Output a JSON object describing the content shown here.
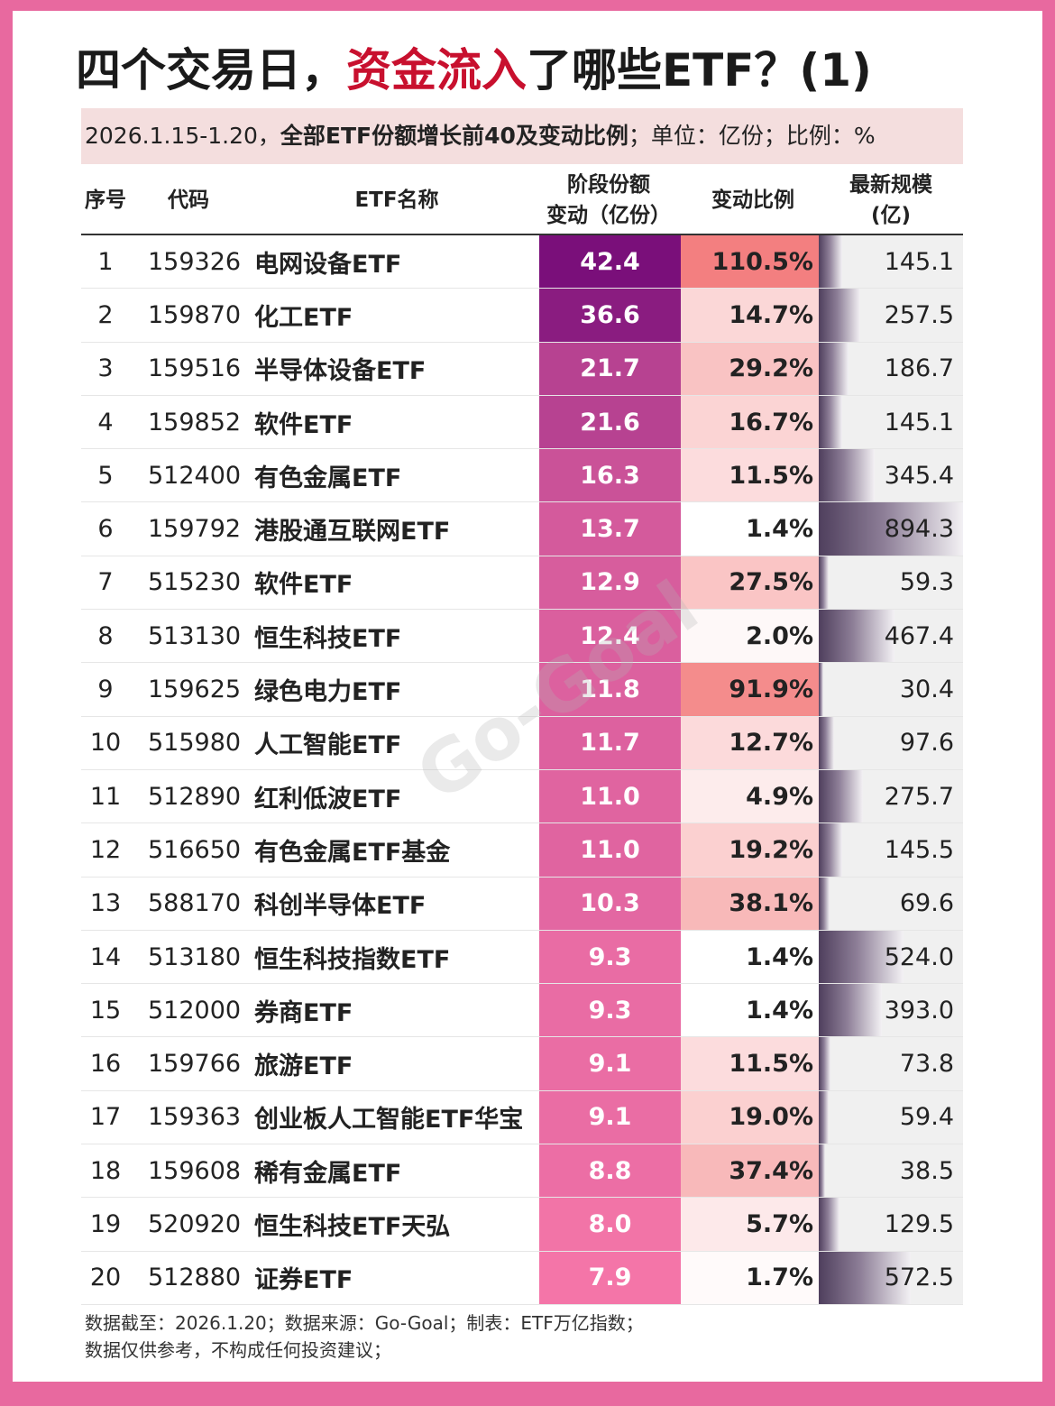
{
  "title": {
    "part1": "四个交易日，",
    "highlight": "资金流入",
    "part2": "了哪些ETF？(1)"
  },
  "subtitle": {
    "part1": "2026.1.15-1.20，",
    "bold": "全部ETF份额增长前40及变动比例",
    "part2": "；单位：亿份；比例：%"
  },
  "headers": {
    "idx": "序号",
    "code": "代码",
    "name": "ETF名称",
    "chg_line1": "阶段份额",
    "chg_line2": "变动（亿份）",
    "pct": "变动比例",
    "size_line1": "最新规模",
    "size_line2": "(亿)"
  },
  "chart_data": {
    "type": "table",
    "columns": [
      "序号",
      "代码",
      "ETF名称",
      "阶段份额变动（亿份）",
      "变动比例",
      "最新规模(亿)"
    ],
    "rows": [
      {
        "idx": "1",
        "code": "159326",
        "name": "电网设备ETF",
        "change": 42.4,
        "change_text": "42.4",
        "pct": 110.5,
        "pct_text": "110.5%",
        "size": 145.1,
        "size_text": "145.1"
      },
      {
        "idx": "2",
        "code": "159870",
        "name": "化工ETF",
        "change": 36.6,
        "change_text": "36.6",
        "pct": 14.7,
        "pct_text": "14.7%",
        "size": 257.5,
        "size_text": "257.5"
      },
      {
        "idx": "3",
        "code": "159516",
        "name": "半导体设备ETF",
        "change": 21.7,
        "change_text": "21.7",
        "pct": 29.2,
        "pct_text": "29.2%",
        "size": 186.7,
        "size_text": "186.7"
      },
      {
        "idx": "4",
        "code": "159852",
        "name": "软件ETF",
        "change": 21.6,
        "change_text": "21.6",
        "pct": 16.7,
        "pct_text": "16.7%",
        "size": 145.1,
        "size_text": "145.1"
      },
      {
        "idx": "5",
        "code": "512400",
        "name": "有色金属ETF",
        "change": 16.3,
        "change_text": "16.3",
        "pct": 11.5,
        "pct_text": "11.5%",
        "size": 345.4,
        "size_text": "345.4"
      },
      {
        "idx": "6",
        "code": "159792",
        "name": "港股通互联网ETF",
        "change": 13.7,
        "change_text": "13.7",
        "pct": 1.4,
        "pct_text": "1.4%",
        "size": 894.3,
        "size_text": "894.3"
      },
      {
        "idx": "7",
        "code": "515230",
        "name": "软件ETF",
        "change": 12.9,
        "change_text": "12.9",
        "pct": 27.5,
        "pct_text": "27.5%",
        "size": 59.3,
        "size_text": "59.3"
      },
      {
        "idx": "8",
        "code": "513130",
        "name": "恒生科技ETF",
        "change": 12.4,
        "change_text": "12.4",
        "pct": 2.0,
        "pct_text": "2.0%",
        "size": 467.4,
        "size_text": "467.4"
      },
      {
        "idx": "9",
        "code": "159625",
        "name": "绿色电力ETF",
        "change": 11.8,
        "change_text": "11.8",
        "pct": 91.9,
        "pct_text": "91.9%",
        "size": 30.4,
        "size_text": "30.4"
      },
      {
        "idx": "10",
        "code": "515980",
        "name": "人工智能ETF",
        "change": 11.7,
        "change_text": "11.7",
        "pct": 12.7,
        "pct_text": "12.7%",
        "size": 97.6,
        "size_text": "97.6"
      },
      {
        "idx": "11",
        "code": "512890",
        "name": "红利低波ETF",
        "change": 11.0,
        "change_text": "11.0",
        "pct": 4.9,
        "pct_text": "4.9%",
        "size": 275.7,
        "size_text": "275.7"
      },
      {
        "idx": "12",
        "code": "516650",
        "name": "有色金属ETF基金",
        "change": 11.0,
        "change_text": "11.0",
        "pct": 19.2,
        "pct_text": "19.2%",
        "size": 145.5,
        "size_text": "145.5"
      },
      {
        "idx": "13",
        "code": "588170",
        "name": "科创半导体ETF",
        "change": 10.3,
        "change_text": "10.3",
        "pct": 38.1,
        "pct_text": "38.1%",
        "size": 69.6,
        "size_text": "69.6"
      },
      {
        "idx": "14",
        "code": "513180",
        "name": "恒生科技指数ETF",
        "change": 9.3,
        "change_text": "9.3",
        "pct": 1.4,
        "pct_text": "1.4%",
        "size": 524.0,
        "size_text": "524.0"
      },
      {
        "idx": "15",
        "code": "512000",
        "name": "券商ETF",
        "change": 9.3,
        "change_text": "9.3",
        "pct": 1.4,
        "pct_text": "1.4%",
        "size": 393.0,
        "size_text": "393.0"
      },
      {
        "idx": "16",
        "code": "159766",
        "name": "旅游ETF",
        "change": 9.1,
        "change_text": "9.1",
        "pct": 11.5,
        "pct_text": "11.5%",
        "size": 73.8,
        "size_text": "73.8"
      },
      {
        "idx": "17",
        "code": "159363",
        "name": "创业板人工智能ETF华宝",
        "change": 9.1,
        "change_text": "9.1",
        "pct": 19.0,
        "pct_text": "19.0%",
        "size": 59.4,
        "size_text": "59.4"
      },
      {
        "idx": "18",
        "code": "159608",
        "name": "稀有金属ETF",
        "change": 8.8,
        "change_text": "8.8",
        "pct": 37.4,
        "pct_text": "37.4%",
        "size": 38.5,
        "size_text": "38.5"
      },
      {
        "idx": "19",
        "code": "520920",
        "name": "恒生科技ETF天弘",
        "change": 8.0,
        "change_text": "8.0",
        "pct": 5.7,
        "pct_text": "5.7%",
        "size": 129.5,
        "size_text": "129.5"
      },
      {
        "idx": "20",
        "code": "512880",
        "name": "证券ETF",
        "change": 7.9,
        "change_text": "7.9",
        "pct": 1.7,
        "pct_text": "1.7%",
        "size": 572.5,
        "size_text": "572.5"
      }
    ]
  },
  "colors": {
    "change_high": "#7a0f7a",
    "change_low": "#f475a8",
    "pct_high": "#f37f80",
    "pct_low": "#ffffff",
    "size_bar_dark": "#4f3f5d"
  },
  "footer": {
    "line1": "数据截至：2026.1.20；数据来源：Go-Goal；制表：ETF万亿指数；",
    "line2": "数据仅供参考，不构成任何投资建议；"
  },
  "watermark": "Go-Goal"
}
